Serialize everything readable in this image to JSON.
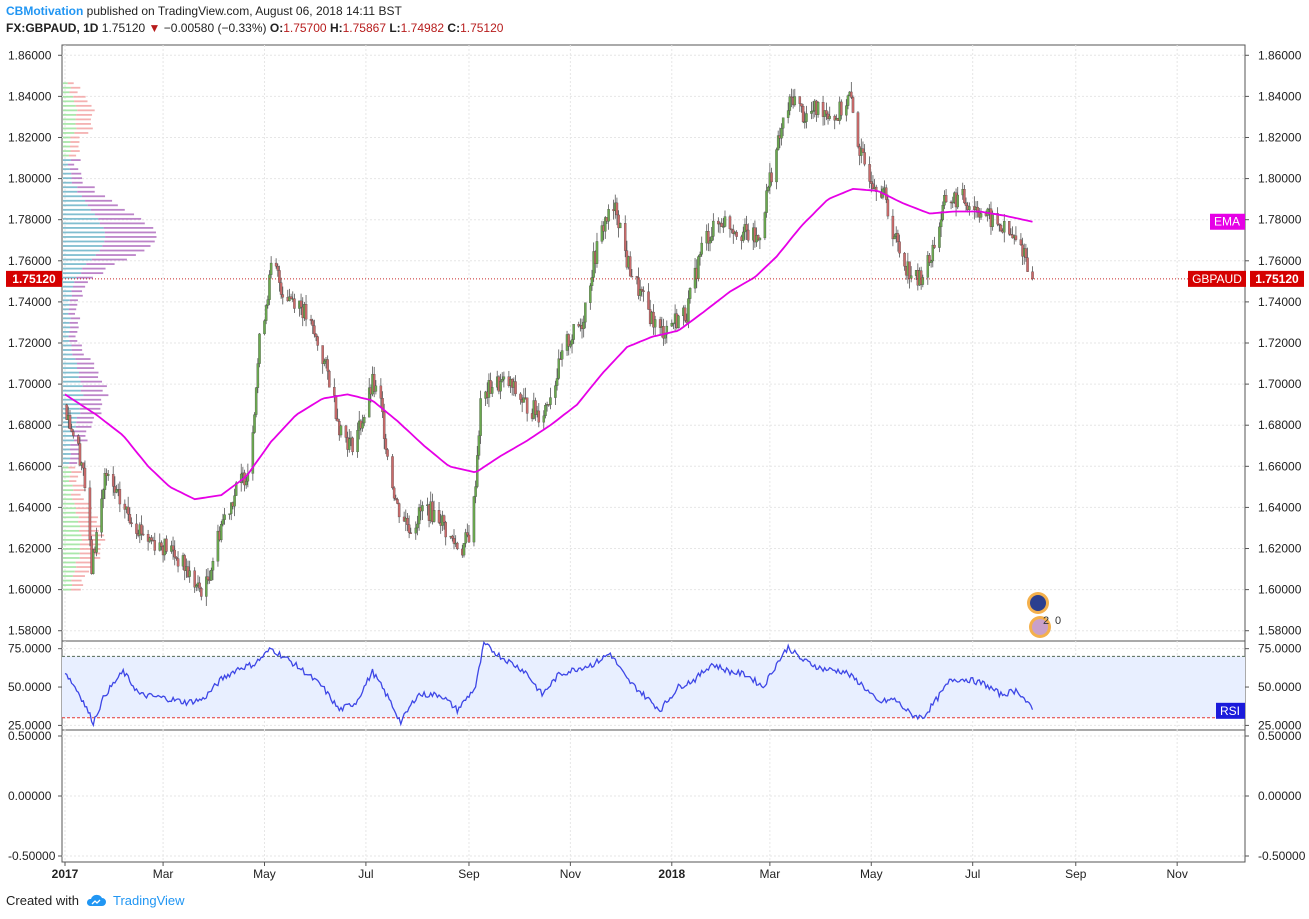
{
  "header": {
    "author": "CBMotivation",
    "published": "published on TradingView.com, August 06, 2018 14:11 BST",
    "symbol": "FX:GBPAUD, 1D",
    "last": "1.75120",
    "change_arrow": "▼",
    "change": "−0.00580 (−0.33%)",
    "o_label": "O:",
    "o": "1.75700",
    "h_label": "H:",
    "h": "1.75867",
    "l_label": "L:",
    "l": "1.74982",
    "c_label": "C:",
    "c": "1.75120"
  },
  "footer": {
    "created_with": "Created with",
    "brand": "TradingView",
    "icon": "tradingview-cloud-icon"
  },
  "colors": {
    "up": "#6aa84f",
    "down": "#c96a6a",
    "ema": "#e600e6",
    "rsi": "#3d46e6",
    "rsi_band": "#e8efff",
    "price_line": "#c62828"
  },
  "chart_data": [
    {
      "type": "candlestick",
      "symbol": "GBPAUD",
      "timeframe": "1D",
      "ylim": [
        1.575,
        1.865
      ],
      "y_ticks": [
        "1.86000",
        "1.84000",
        "1.82000",
        "1.80000",
        "1.78000",
        "1.76000",
        "1.74000",
        "1.72000",
        "1.70000",
        "1.68000",
        "1.66000",
        "1.64000",
        "1.62000",
        "1.60000",
        "1.58000"
      ],
      "y_tick_values": [
        1.86,
        1.84,
        1.82,
        1.8,
        1.78,
        1.76,
        1.74,
        1.72,
        1.7,
        1.68,
        1.66,
        1.64,
        1.62,
        1.6,
        1.58
      ],
      "x_labels": [
        {
          "label": "2017",
          "date": "2017-01-01"
        },
        {
          "label": "Mar",
          "date": "2017-03-01"
        },
        {
          "label": "May",
          "date": "2017-05-01"
        },
        {
          "label": "Jul",
          "date": "2017-07-01"
        },
        {
          "label": "Sep",
          "date": "2017-09-01"
        },
        {
          "label": "Nov",
          "date": "2017-11-01"
        },
        {
          "label": "2018",
          "date": "2018-01-01"
        },
        {
          "label": "Mar",
          "date": "2018-03-01"
        },
        {
          "label": "May",
          "date": "2018-05-01"
        },
        {
          "label": "Jul",
          "date": "2018-07-01"
        },
        {
          "label": "Sep",
          "date": "2018-09-01"
        },
        {
          "label": "Nov",
          "date": "2018-11-01"
        }
      ],
      "x_range": [
        "2017-01-01",
        "2018-12-10"
      ],
      "price_path": [
        [
          "2017-01-01",
          1.69
        ],
        [
          "2017-01-12",
          1.66
        ],
        [
          "2017-01-17",
          1.61
        ],
        [
          "2017-01-25",
          1.655
        ],
        [
          "2017-02-05",
          1.64
        ],
        [
          "2017-02-20",
          1.625
        ],
        [
          "2017-03-05",
          1.62
        ],
        [
          "2017-03-15",
          1.61
        ],
        [
          "2017-03-22",
          1.6
        ],
        [
          "2017-03-27",
          1.602
        ],
        [
          "2017-04-05",
          1.632
        ],
        [
          "2017-04-15",
          1.65
        ],
        [
          "2017-04-22",
          1.66
        ],
        [
          "2017-04-28",
          1.72
        ],
        [
          "2017-05-06",
          1.76
        ],
        [
          "2017-05-12",
          1.745
        ],
        [
          "2017-05-22",
          1.74
        ],
        [
          "2017-06-02",
          1.72
        ],
        [
          "2017-06-10",
          1.7
        ],
        [
          "2017-06-15",
          1.68
        ],
        [
          "2017-06-22",
          1.67
        ],
        [
          "2017-06-30",
          1.685
        ],
        [
          "2017-07-05",
          1.7
        ],
        [
          "2017-07-10",
          1.69
        ],
        [
          "2017-07-15",
          1.66
        ],
        [
          "2017-07-20",
          1.64
        ],
        [
          "2017-07-28",
          1.63
        ],
        [
          "2017-08-05",
          1.64
        ],
        [
          "2017-08-15",
          1.635
        ],
        [
          "2017-08-20",
          1.625
        ],
        [
          "2017-08-28",
          1.62
        ],
        [
          "2017-09-03",
          1.63
        ],
        [
          "2017-09-08",
          1.69
        ],
        [
          "2017-09-15",
          1.7
        ],
        [
          "2017-09-25",
          1.7
        ],
        [
          "2017-10-05",
          1.69
        ],
        [
          "2017-10-15",
          1.685
        ],
        [
          "2017-10-22",
          1.7
        ],
        [
          "2017-10-30",
          1.72
        ],
        [
          "2017-11-08",
          1.73
        ],
        [
          "2017-11-15",
          1.76
        ],
        [
          "2017-11-22",
          1.78
        ],
        [
          "2017-11-29",
          1.785
        ],
        [
          "2017-12-05",
          1.76
        ],
        [
          "2017-12-15",
          1.74
        ],
        [
          "2017-12-25",
          1.725
        ],
        [
          "2018-01-01",
          1.73
        ],
        [
          "2018-01-10",
          1.735
        ],
        [
          "2018-01-20",
          1.77
        ],
        [
          "2018-02-01",
          1.78
        ],
        [
          "2018-02-10",
          1.775
        ],
        [
          "2018-02-22",
          1.77
        ],
        [
          "2018-03-01",
          1.8
        ],
        [
          "2018-03-10",
          1.83
        ],
        [
          "2018-03-15",
          1.84
        ],
        [
          "2018-03-22",
          1.83
        ],
        [
          "2018-04-01",
          1.835
        ],
        [
          "2018-04-10",
          1.83
        ],
        [
          "2018-04-18",
          1.84
        ],
        [
          "2018-04-25",
          1.81
        ],
        [
          "2018-05-02",
          1.8
        ],
        [
          "2018-05-08",
          1.795
        ],
        [
          "2018-05-12",
          1.78
        ],
        [
          "2018-05-20",
          1.76
        ],
        [
          "2018-05-29",
          1.75
        ],
        [
          "2018-06-05",
          1.76
        ],
        [
          "2018-06-15",
          1.79
        ],
        [
          "2018-06-25",
          1.79
        ],
        [
          "2018-07-05",
          1.785
        ],
        [
          "2018-07-12",
          1.78
        ],
        [
          "2018-07-20",
          1.775
        ],
        [
          "2018-07-26",
          1.77
        ],
        [
          "2018-08-01",
          1.765
        ],
        [
          "2018-08-06",
          1.7512
        ]
      ],
      "ema_path": [
        [
          "2017-01-01",
          1.695
        ],
        [
          "2017-01-20",
          1.685
        ],
        [
          "2017-02-05",
          1.675
        ],
        [
          "2017-02-20",
          1.66
        ],
        [
          "2017-03-05",
          1.65
        ],
        [
          "2017-03-20",
          1.644
        ],
        [
          "2017-04-05",
          1.646
        ],
        [
          "2017-04-20",
          1.655
        ],
        [
          "2017-05-05",
          1.672
        ],
        [
          "2017-05-20",
          1.685
        ],
        [
          "2017-06-05",
          1.693
        ],
        [
          "2017-06-20",
          1.695
        ],
        [
          "2017-07-05",
          1.692
        ],
        [
          "2017-07-20",
          1.682
        ],
        [
          "2017-08-05",
          1.67
        ],
        [
          "2017-08-20",
          1.66
        ],
        [
          "2017-09-05",
          1.657
        ],
        [
          "2017-09-20",
          1.665
        ],
        [
          "2017-10-05",
          1.672
        ],
        [
          "2017-10-20",
          1.68
        ],
        [
          "2017-11-05",
          1.69
        ],
        [
          "2017-11-20",
          1.705
        ],
        [
          "2017-12-05",
          1.718
        ],
        [
          "2017-12-20",
          1.723
        ],
        [
          "2018-01-05",
          1.726
        ],
        [
          "2018-01-20",
          1.735
        ],
        [
          "2018-02-05",
          1.745
        ],
        [
          "2018-02-20",
          1.752
        ],
        [
          "2018-03-05",
          1.762
        ],
        [
          "2018-03-20",
          1.777
        ],
        [
          "2018-04-05",
          1.79
        ],
        [
          "2018-04-20",
          1.795
        ],
        [
          "2018-05-05",
          1.794
        ],
        [
          "2018-05-20",
          1.788
        ],
        [
          "2018-06-05",
          1.783
        ],
        [
          "2018-06-20",
          1.784
        ],
        [
          "2018-07-05",
          1.784
        ],
        [
          "2018-07-20",
          1.782
        ],
        [
          "2018-08-06",
          1.779
        ]
      ],
      "last_price": 1.7512,
      "last_price_label": "1.75120",
      "symbol_tag": "GBPAUD",
      "ema_tag": "EMA",
      "volume_profile": {
        "note": "horizontal volume-by-price histogram at left",
        "peak_price": 1.773
      },
      "event_markers": {
        "count_label": "2",
        "zero_label": "0",
        "icons": [
          "australia-flag-icon",
          "uk-flag-icon"
        ]
      }
    },
    {
      "type": "line",
      "name": "RSI",
      "tag": "RSI",
      "ylim": [
        22,
        80
      ],
      "y_ticks": [
        "75.0000",
        "50.0000",
        "25.0000"
      ],
      "y_tick_values": [
        75,
        50,
        25
      ],
      "overbought": 70,
      "oversold": 30,
      "values_path": [
        [
          "2017-01-01",
          60
        ],
        [
          "2017-01-10",
          45
        ],
        [
          "2017-01-18",
          27
        ],
        [
          "2017-01-25",
          45
        ],
        [
          "2017-02-05",
          60
        ],
        [
          "2017-02-15",
          45
        ],
        [
          "2017-03-01",
          43
        ],
        [
          "2017-03-15",
          40
        ],
        [
          "2017-03-25",
          42
        ],
        [
          "2017-04-05",
          55
        ],
        [
          "2017-04-15",
          62
        ],
        [
          "2017-04-25",
          65
        ],
        [
          "2017-05-05",
          75
        ],
        [
          "2017-05-15",
          68
        ],
        [
          "2017-05-25",
          60
        ],
        [
          "2017-06-05",
          50
        ],
        [
          "2017-06-15",
          35
        ],
        [
          "2017-06-25",
          40
        ],
        [
          "2017-07-05",
          60
        ],
        [
          "2017-07-15",
          42
        ],
        [
          "2017-07-22",
          27
        ],
        [
          "2017-08-01",
          45
        ],
        [
          "2017-08-15",
          45
        ],
        [
          "2017-08-25",
          35
        ],
        [
          "2017-09-05",
          50
        ],
        [
          "2017-09-10",
          78
        ],
        [
          "2017-09-20",
          70
        ],
        [
          "2017-10-05",
          60
        ],
        [
          "2017-10-15",
          45
        ],
        [
          "2017-10-25",
          58
        ],
        [
          "2017-11-05",
          62
        ],
        [
          "2017-11-15",
          65
        ],
        [
          "2017-11-25",
          72
        ],
        [
          "2017-12-05",
          55
        ],
        [
          "2017-12-15",
          45
        ],
        [
          "2017-12-25",
          35
        ],
        [
          "2018-01-05",
          50
        ],
        [
          "2018-01-15",
          55
        ],
        [
          "2018-01-25",
          65
        ],
        [
          "2018-02-05",
          60
        ],
        [
          "2018-02-15",
          58
        ],
        [
          "2018-02-25",
          50
        ],
        [
          "2018-03-05",
          65
        ],
        [
          "2018-03-12",
          76
        ],
        [
          "2018-03-20",
          68
        ],
        [
          "2018-04-01",
          62
        ],
        [
          "2018-04-15",
          60
        ],
        [
          "2018-04-25",
          52
        ],
        [
          "2018-05-05",
          40
        ],
        [
          "2018-05-15",
          42
        ],
        [
          "2018-05-25",
          32
        ],
        [
          "2018-06-01",
          30
        ],
        [
          "2018-06-08",
          40
        ],
        [
          "2018-06-18",
          55
        ],
        [
          "2018-06-28",
          55
        ],
        [
          "2018-07-08",
          52
        ],
        [
          "2018-07-18",
          45
        ],
        [
          "2018-07-28",
          48
        ],
        [
          "2018-08-06",
          35
        ]
      ]
    },
    {
      "type": "line",
      "name": "empty-pane",
      "ylim": [
        -0.55,
        0.55
      ],
      "y_ticks": [
        "0.50000",
        "0.00000",
        "-0.50000"
      ],
      "y_tick_values": [
        0.5,
        0,
        -0.5
      ]
    }
  ]
}
